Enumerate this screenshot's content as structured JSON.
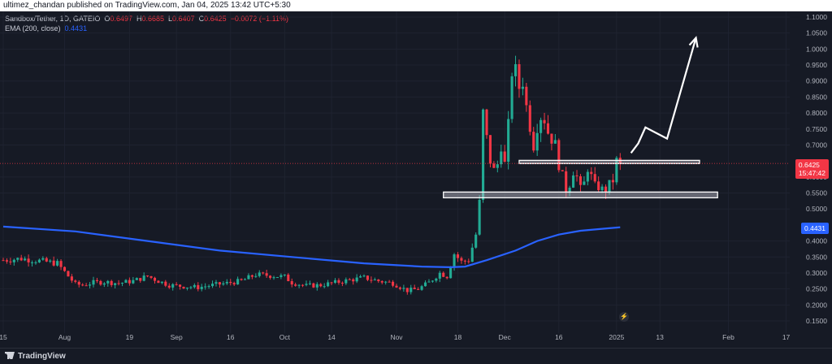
{
  "header": {
    "published": "ultimez_chandan published on TradingView.com, Jan 04, 2025 13:42 UTC+5:30"
  },
  "legend": {
    "symbol": "Sandbox/Tether, 1D, GATEIO",
    "o_label": "O",
    "o_value": "0.6497",
    "h_label": "H",
    "h_value": "0.6685",
    "l_label": "L",
    "l_value": "0.6407",
    "c_label": "C",
    "c_value": "0.6425",
    "change": "−0.0072 (−1.11%)",
    "ema_label": "EMA (200, close)",
    "ema_value": "0.4431"
  },
  "price_tag": {
    "price": "0.6425",
    "countdown": "15:47:42",
    "color": "#f23645"
  },
  "ema_tag": {
    "value": "0.4431",
    "color": "#2962ff"
  },
  "footer": {
    "brand": "TradingView"
  },
  "colors": {
    "up": "#22ab94",
    "down": "#f23645",
    "ema": "#2962ff",
    "background": "#161a25",
    "grid": "#1f2330"
  },
  "chart_data": {
    "type": "candlestick",
    "ylim": [
      0.125,
      1.1
    ],
    "y_ticks": [
      1.1,
      1.05,
      1.0,
      0.95,
      0.9,
      0.85,
      0.8,
      0.75,
      0.7,
      0.6,
      0.55,
      0.5,
      0.4,
      0.35,
      0.3,
      0.25,
      0.2,
      0.15
    ],
    "y_tick_labels": [
      "1.1000",
      "1.0500",
      "1.0000",
      "0.9500",
      "0.9000",
      "0.8500",
      "0.8000",
      "0.7500",
      "0.7000",
      "0.6000",
      "0.5500",
      "0.5000",
      "0.4000",
      "0.3500",
      "0.3000",
      "0.2500",
      "0.2000",
      "0.1500"
    ],
    "x_ticks": [
      {
        "label": "15",
        "day": 0
      },
      {
        "label": "Aug",
        "day": 17
      },
      {
        "label": "19",
        "day": 35
      },
      {
        "label": "Sep",
        "day": 48
      },
      {
        "label": "16",
        "day": 63
      },
      {
        "label": "Oct",
        "day": 78
      },
      {
        "label": "14",
        "day": 91
      },
      {
        "label": "Nov",
        "day": 109
      },
      {
        "label": "18",
        "day": 126
      },
      {
        "label": "Dec",
        "day": 139
      },
      {
        "label": "16",
        "day": 154
      },
      {
        "label": "2025",
        "day": 170
      },
      {
        "label": "13",
        "day": 182
      },
      {
        "label": "Feb",
        "day": 201
      },
      {
        "label": "17",
        "day": 217
      }
    ],
    "day_range": [
      0,
      218
    ],
    "ohlc_keypoints": [
      [
        0,
        0.34
      ],
      [
        5,
        0.345
      ],
      [
        10,
        0.338
      ],
      [
        15,
        0.33
      ],
      [
        18,
        0.29
      ],
      [
        20,
        0.265
      ],
      [
        22,
        0.262
      ],
      [
        25,
        0.27
      ],
      [
        28,
        0.272
      ],
      [
        32,
        0.268
      ],
      [
        36,
        0.275
      ],
      [
        40,
        0.29
      ],
      [
        43,
        0.275
      ],
      [
        46,
        0.262
      ],
      [
        50,
        0.258
      ],
      [
        54,
        0.255
      ],
      [
        58,
        0.262
      ],
      [
        62,
        0.268
      ],
      [
        66,
        0.275
      ],
      [
        70,
        0.295
      ],
      [
        74,
        0.292
      ],
      [
        78,
        0.288
      ],
      [
        80,
        0.27
      ],
      [
        84,
        0.26
      ],
      [
        88,
        0.262
      ],
      [
        92,
        0.27
      ],
      [
        96,
        0.278
      ],
      [
        100,
        0.285
      ],
      [
        104,
        0.275
      ],
      [
        108,
        0.268
      ],
      [
        112,
        0.245
      ],
      [
        115,
        0.25
      ],
      [
        118,
        0.27
      ],
      [
        121,
        0.3
      ],
      [
        123,
        0.29
      ],
      [
        125,
        0.36
      ],
      [
        127,
        0.335
      ],
      [
        129,
        0.34
      ],
      [
        131,
        0.42
      ],
      [
        132,
        0.52
      ],
      [
        133,
        0.8
      ],
      [
        134,
        0.72
      ],
      [
        135,
        0.65
      ],
      [
        136,
        0.62
      ],
      [
        137,
        0.64
      ],
      [
        138,
        0.7
      ],
      [
        139,
        0.64
      ],
      [
        140,
        0.76
      ],
      [
        141,
        0.93
      ],
      [
        142,
        0.93
      ],
      [
        143,
        0.88
      ],
      [
        144,
        0.9
      ],
      [
        145,
        0.82
      ],
      [
        146,
        0.76
      ],
      [
        147,
        0.7
      ],
      [
        148,
        0.76
      ],
      [
        149,
        0.79
      ],
      [
        150,
        0.78
      ],
      [
        151,
        0.74
      ],
      [
        152,
        0.72
      ],
      [
        153,
        0.7
      ],
      [
        154,
        0.64
      ],
      [
        155,
        0.6
      ],
      [
        156,
        0.56
      ],
      [
        157,
        0.58
      ],
      [
        158,
        0.62
      ],
      [
        159,
        0.6
      ],
      [
        160,
        0.56
      ],
      [
        161,
        0.58
      ],
      [
        162,
        0.63
      ],
      [
        163,
        0.6
      ],
      [
        164,
        0.57
      ],
      [
        165,
        0.57
      ],
      [
        166,
        0.56
      ],
      [
        167,
        0.56
      ],
      [
        168,
        0.575
      ],
      [
        169,
        0.59
      ],
      [
        170,
        0.65
      ],
      [
        171,
        0.643
      ]
    ],
    "ema_points": [
      [
        0,
        0.445
      ],
      [
        20,
        0.43
      ],
      [
        40,
        0.4
      ],
      [
        60,
        0.37
      ],
      [
        80,
        0.35
      ],
      [
        100,
        0.33
      ],
      [
        116,
        0.32
      ],
      [
        124,
        0.318
      ],
      [
        128,
        0.32
      ],
      [
        134,
        0.34
      ],
      [
        142,
        0.37
      ],
      [
        148,
        0.4
      ],
      [
        154,
        0.42
      ],
      [
        160,
        0.432
      ],
      [
        166,
        0.438
      ],
      [
        171,
        0.443
      ]
    ],
    "zones": [
      {
        "day_start": 143,
        "day_end": 193,
        "low": 0.642,
        "high": 0.652
      },
      {
        "day_start": 122,
        "day_end": 198,
        "low": 0.535,
        "high": 0.553
      }
    ],
    "projection_arrow": [
      [
        174,
        0.675
      ],
      [
        176,
        0.705
      ],
      [
        178,
        0.755
      ],
      [
        184,
        0.72
      ],
      [
        192,
        1.035
      ]
    ],
    "current_price": 0.6425
  }
}
